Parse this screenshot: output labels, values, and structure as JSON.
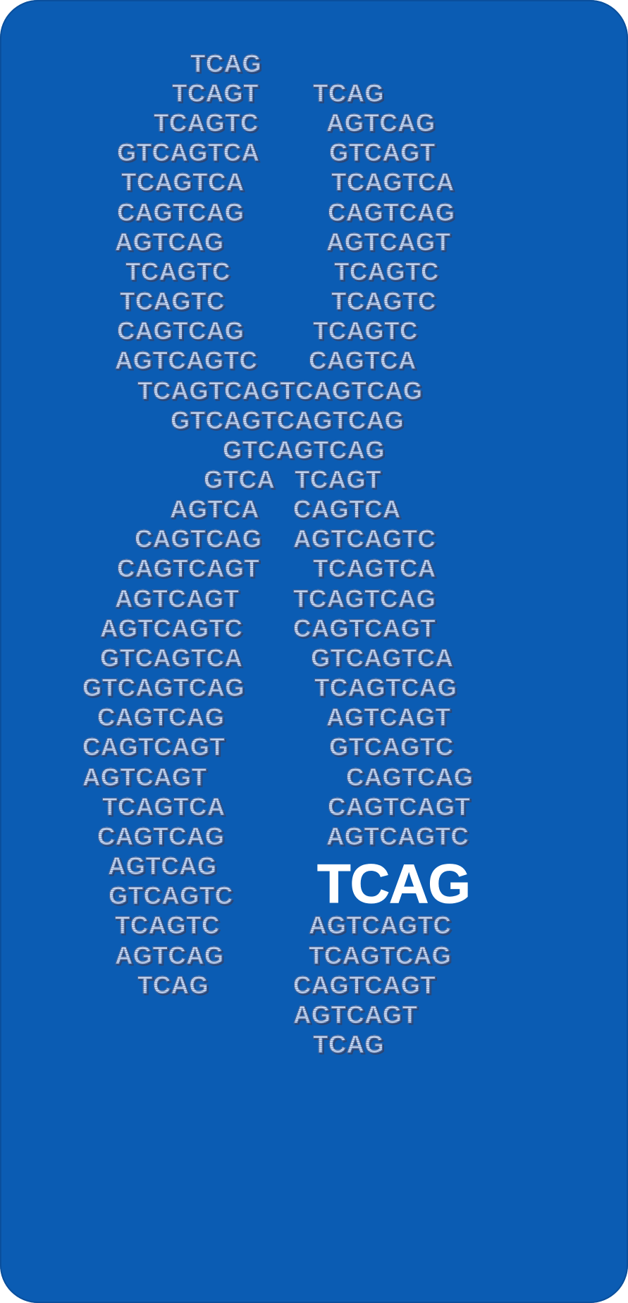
{
  "sequences": [
    "TCAG",
    "TCAGT",
    "TCAG",
    "TCAGTC",
    "AGTCAG",
    "GTCAGTCA",
    "GTCAGT",
    "TCAGTCA",
    "TCAGTCA",
    "CAGTCAG",
    "CAGTCAG",
    "AGTCAG",
    "AGTCAGT",
    "TCAGTC",
    "TCAGTC",
    "TCAGTC",
    "TCAGTC",
    "CAGTCAG",
    "TCAGTC",
    "AGTCAGTC",
    "CAGTCA",
    "TCAGTCAGTCAGTCAG",
    "GTCAGTCAGTCAG",
    "GTCAGTCAG",
    "GTCA",
    "TCAGT",
    "AGTCA",
    "CAGTCA",
    "CAGTCAG",
    "AGTCAGTC",
    "CAGTCAGT",
    "TCAGTCA",
    "AGTCAGT",
    "TCAGTCAG",
    "AGTCAGTC",
    "CAGTCAGT",
    "GTCAGTCA",
    "GTCAGTCA",
    "GTCAGTCAG",
    "TCAGTCAG",
    "CAGTCAG",
    "AGTCAGT",
    "CAGTCAGT",
    "GTCAGTC",
    "AGTCAGT",
    "CAGTCAG",
    "TCAGTCA",
    "CAGTCAGT",
    "CAGTCAG",
    "AGTCAGTC",
    "AGTCAG",
    "GTCAGTC",
    "TCAGTC",
    "AGTCAGTC",
    "AGTCAG",
    "TCAGTCAG",
    "TCAG",
    "CAGTCAGT",
    "AGTCAGT",
    "TCAG"
  ],
  "highlight": "TCAG",
  "colors": {
    "background": "#0b5cb3",
    "letters": "#b8cbe8",
    "highlight": "#ffffff"
  }
}
